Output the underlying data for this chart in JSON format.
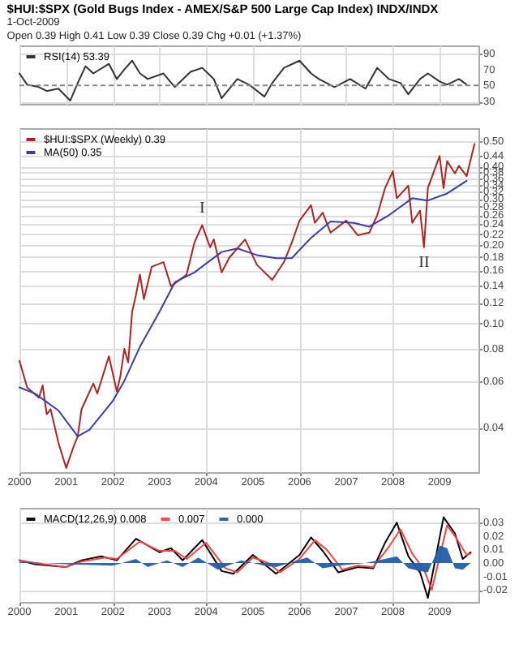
{
  "chart_data": [
    {
      "type": "line",
      "title": "$HUI:$SPX (Gold Bugs Index - AMEX/S&P 500 Large Cap Index) INDX/INDX",
      "subtitle": "1-Oct-2009",
      "annotations": [
        "Open 0.39 High 0.41 Low 0.39 Close 0.39 Chg +0.01 (+1.37%)"
      ],
      "x": [
        "2000-01",
        "2000-03",
        "2000-06",
        "2000-08",
        "2000-11",
        "2001-02",
        "2001-04",
        "2001-06",
        "2001-08",
        "2001-12",
        "2002-02",
        "2002-04",
        "2002-06",
        "2002-08",
        "2002-10",
        "2003-02",
        "2003-05",
        "2003-09",
        "2003-12",
        "2004-03",
        "2004-05",
        "2004-09",
        "2004-12",
        "2005-04",
        "2005-06",
        "2005-09",
        "2006-01",
        "2006-04",
        "2006-06",
        "2006-10",
        "2007-02",
        "2007-06",
        "2007-09",
        "2007-12",
        "2008-03",
        "2008-05",
        "2008-08",
        "2008-10",
        "2009-01",
        "2009-03",
        "2009-06",
        "2009-08"
      ],
      "series": [
        {
          "name": "RSI(14) 53.39",
          "color": "#333333",
          "values": [
            65,
            51,
            48,
            43,
            46,
            31,
            53,
            74,
            65,
            77,
            58,
            70,
            81,
            65,
            58,
            65,
            48,
            67,
            72,
            58,
            34,
            58,
            51,
            36,
            53,
            72,
            81,
            65,
            58,
            48,
            58,
            46,
            72,
            58,
            53,
            39,
            58,
            65,
            55,
            51,
            58,
            51
          ]
        }
      ],
      "xlim": [
        "2000-01",
        "2009-11"
      ],
      "xticks": [
        "2000",
        "2001",
        "2002",
        "2003",
        "2004",
        "2005",
        "2006",
        "2007",
        "2008",
        "2009"
      ],
      "ylim": [
        27,
        100
      ],
      "yticks": [
        30,
        50,
        70,
        90
      ],
      "grid": true,
      "legend": "top left",
      "tick_labels": "y",
      "ref_lines": [
        {
          "axis": "y",
          "value": 50,
          "line_style": "dashed"
        }
      ]
    },
    {
      "type": "line",
      "log": true,
      "series": [
        {
          "name": "$HUI:$SPX (Weekly) 0.39",
          "color": "#b22222",
          "x": [
            "2000-01",
            "2000-03",
            "2000-06",
            "2000-07",
            "2000-08",
            "2000-09",
            "2000-11",
            "2001-01",
            "2001-03",
            "2001-04",
            "2001-05",
            "2001-08",
            "2001-09",
            "2001-12",
            "2002-02",
            "2002-03",
            "2002-04",
            "2002-05",
            "2002-06",
            "2002-07",
            "2002-08",
            "2002-09",
            "2002-11",
            "2003-02",
            "2003-04",
            "2003-08",
            "2003-10",
            "2003-12",
            "2004-02",
            "2004-03",
            "2004-05",
            "2004-07",
            "2004-11",
            "2005-02",
            "2005-06",
            "2005-09",
            "2005-11",
            "2006-01",
            "2006-04",
            "2006-05",
            "2006-07",
            "2006-09",
            "2007-01",
            "2007-04",
            "2007-07",
            "2007-09",
            "2007-11",
            "2008-01",
            "2008-02",
            "2008-05",
            "2008-06",
            "2008-08",
            "2008-09",
            "2008-10",
            "2009-01",
            "2009-02",
            "2009-03",
            "2009-05",
            "2009-06",
            "2009-08",
            "2009-10"
          ],
          "values": [
            0.072,
            0.057,
            0.052,
            0.058,
            0.045,
            0.047,
            0.035,
            0.028,
            0.034,
            0.037,
            0.047,
            0.059,
            0.054,
            0.075,
            0.055,
            0.063,
            0.08,
            0.071,
            0.111,
            0.129,
            0.154,
            0.124,
            0.165,
            0.172,
            0.139,
            0.154,
            0.204,
            0.238,
            0.196,
            0.21,
            0.157,
            0.179,
            0.21,
            0.168,
            0.147,
            0.172,
            0.204,
            0.248,
            0.284,
            0.243,
            0.266,
            0.223,
            0.248,
            0.218,
            0.223,
            0.26,
            0.33,
            0.383,
            0.302,
            0.337,
            0.243,
            0.271,
            0.196,
            0.33,
            0.438,
            0.33,
            0.419,
            0.376,
            0.402,
            0.367,
            0.487
          ]
        },
        {
          "name": "MA(50) 0.35",
          "color": "#3b3bb0",
          "x": [
            "2000-01",
            "2000-05",
            "2000-11",
            "2001-04",
            "2001-07",
            "2002-01",
            "2002-04",
            "2002-08",
            "2003-01",
            "2003-05",
            "2003-10",
            "2004-05",
            "2004-09",
            "2005-02",
            "2005-07",
            "2005-11",
            "2006-04",
            "2006-09",
            "2007-03",
            "2007-07",
            "2007-12",
            "2008-06",
            "2008-10",
            "2009-03",
            "2009-08"
          ],
          "values": [
            0.057,
            0.054,
            0.0465,
            0.037,
            0.0392,
            0.0506,
            0.0604,
            0.0816,
            0.111,
            0.144,
            0.157,
            0.188,
            0.194,
            0.183,
            0.178,
            0.178,
            0.213,
            0.246,
            0.243,
            0.235,
            0.26,
            0.302,
            0.296,
            0.315,
            0.352
          ]
        }
      ],
      "xlim": [
        "2000-01",
        "2009-11"
      ],
      "xticks": [
        "2000",
        "2001",
        "2002",
        "2003",
        "2004",
        "2005",
        "2006",
        "2007",
        "2008",
        "2009"
      ],
      "ylim": [
        0.027,
        0.56
      ],
      "yticks": [
        0.04,
        0.06,
        0.08,
        {
          "value": 0.1,
          "label": "0.10"
        },
        0.12,
        0.14,
        0.16,
        0.18,
        {
          "value": 0.2,
          "label": "0.20"
        },
        0.22,
        0.24,
        0.26,
        0.28,
        {
          "value": 0.3,
          "label": "0.30"
        },
        0.32,
        0.34,
        0.36,
        0.38,
        {
          "value": 0.4,
          "label": "0.40"
        },
        0.44,
        {
          "value": 0.5,
          "label": "0.50"
        }
      ],
      "grid": true,
      "legend": "top left",
      "annotations": [
        {
          "text": "I",
          "x": "2003-12",
          "y": 0.238
        },
        {
          "text": "II",
          "x": "2008-09",
          "y": 0.196
        }
      ]
    },
    {
      "type": "line",
      "series": [
        {
          "name": "MACD(12,26,9) 0.008",
          "color": "#000000",
          "x": [
            "2000-01",
            "2000-05",
            "2001-01",
            "2001-05",
            "2001-10",
            "2002-02",
            "2002-07",
            "2003-01",
            "2003-04",
            "2003-07",
            "2003-12",
            "2004-05",
            "2004-08",
            "2005-01",
            "2005-04",
            "2005-07",
            "2006-01",
            "2006-04",
            "2006-07",
            "2006-11",
            "2007-04",
            "2007-08",
            "2007-11",
            "2008-02",
            "2008-05",
            "2008-08",
            "2008-10",
            "2009-02",
            "2009-05",
            "2009-07",
            "2009-09"
          ],
          "values": [
            0.002,
            -0.001,
            -0.003,
            0.002,
            0.005,
            0.002,
            0.018,
            0.008,
            0.011,
            0.002,
            0.017,
            -0.006,
            -0.008,
            0.006,
            -0.001,
            -0.008,
            0.006,
            0.019,
            0.009,
            -0.007,
            -0.003,
            -0.004,
            0.015,
            0.03,
            0.005,
            -0.007,
            -0.026,
            0.034,
            0.022,
            0.003,
            0.008
          ]
        },
        {
          "name": "0.007",
          "color": "#ff4040",
          "x": [
            "2000-01",
            "2000-05",
            "2001-01",
            "2001-05",
            "2001-11",
            "2002-02",
            "2002-08",
            "2003-01",
            "2003-05",
            "2003-08",
            "2004-01",
            "2004-06",
            "2004-09",
            "2005-01",
            "2005-05",
            "2005-08",
            "2006-01",
            "2006-05",
            "2006-08",
            "2006-12",
            "2007-04",
            "2007-08",
            "2007-12",
            "2008-03",
            "2008-06",
            "2008-09",
            "2008-11",
            "2009-03",
            "2009-05",
            "2009-08",
            "2009-09"
          ],
          "values": [
            0.002,
            0,
            -0.003,
            0.001,
            0.004,
            0.003,
            0.016,
            0.009,
            0.009,
            0.003,
            0.015,
            -0.004,
            -0.007,
            0.004,
            0,
            -0.007,
            0.003,
            0.017,
            0.01,
            -0.005,
            -0.002,
            -0.003,
            0.012,
            0.025,
            0.007,
            -0.005,
            -0.02,
            0.028,
            0.02,
            0.006,
            0.007
          ]
        },
        {
          "name": "0.000",
          "color": "#1f5fa8",
          "type": "area",
          "x": [
            "2000-01",
            "2001-01",
            "2002-01",
            "2002-07",
            "2002-10",
            "2003-03",
            "2003-07",
            "2003-11",
            "2004-04",
            "2004-10",
            "2005-04",
            "2005-07",
            "2006-03",
            "2006-07",
            "2006-11",
            "2007-06",
            "2007-11",
            "2008-02",
            "2008-05",
            "2008-08",
            "2008-10",
            "2009-01",
            "2009-03",
            "2009-05",
            "2009-07",
            "2009-09"
          ],
          "values": [
            0.001,
            -0.001,
            -0.002,
            0.003,
            -0.003,
            0.002,
            -0.003,
            0.004,
            -0.005,
            0.002,
            -0.002,
            -0.003,
            0.004,
            -0.004,
            -0.002,
            0,
            0.003,
            0.005,
            -0.004,
            -0.006,
            -0.007,
            0.013,
            0.011,
            -0.004,
            -0.005,
            0
          ]
        }
      ],
      "xlim": [
        "2000-01",
        "2009-11"
      ],
      "xticks": [
        "2000",
        "2001",
        "2002",
        "2003",
        "2004",
        "2005",
        "2006",
        "2007",
        "2008",
        "2009"
      ],
      "ylim": [
        -0.029,
        0.041
      ],
      "yticks": [
        -0.02,
        -0.01,
        {
          "value": 0,
          "label": "0.00"
        },
        0.01,
        0.02,
        0.03
      ],
      "grid": true,
      "legend": "top left"
    }
  ]
}
